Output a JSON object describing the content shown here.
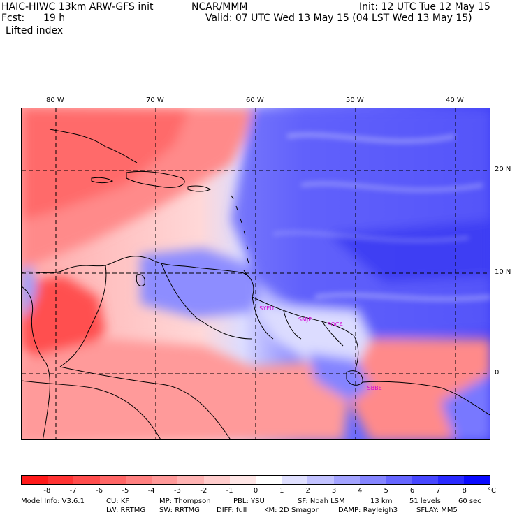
{
  "header": {
    "model_title": "HAIC-HIWC 13km ARW-GFS init",
    "org": "NCAR/MMM",
    "init": "Init: 12 UTC Tue 12 May 15",
    "fcst_label": "Fcst:",
    "fcst_value": "19 h",
    "valid": "Valid: 07 UTC Wed 13 May 15 (04 LST Wed 13 May 15)",
    "field": "Lifted index"
  },
  "map": {
    "lon_labels": [
      "80 W",
      "70 W",
      "60 W",
      "50 W",
      "40 W"
    ],
    "lon_values": [
      -80,
      -70,
      -60,
      -50,
      -40
    ],
    "lat_labels": [
      "20 N",
      "10 N",
      "0"
    ],
    "lat_values": [
      20,
      10,
      0
    ],
    "lon_range": [
      -84,
      -37
    ],
    "lat_range": [
      -6.5,
      26
    ],
    "stations": [
      {
        "label": "SYEU",
        "lon": -59.3,
        "lat": 6.4
      },
      {
        "label": "SMJP",
        "lon": -55.4,
        "lat": 5.3
      },
      {
        "label": "SOCA",
        "lon": -52.5,
        "lat": 4.8
      },
      {
        "label": "SBBE",
        "lon": -48.5,
        "lat": -1.4
      }
    ],
    "colors": {
      "station": "#d400d4",
      "grid": "#000000",
      "coast": "#000000"
    }
  },
  "colorbar": {
    "labels": [
      "-8",
      "-7",
      "-6",
      "-5",
      "-4",
      "-3",
      "-2",
      "-1",
      "0",
      "1",
      "2",
      "3",
      "4",
      "5",
      "6",
      "7",
      "8"
    ],
    "unit": "°C",
    "colors": [
      "#ff1a1a",
      "#ff3333",
      "#ff4d4d",
      "#ff6666",
      "#ff8080",
      "#ff9999",
      "#ffb3b3",
      "#ffcccc",
      "#ffe6e6",
      "#ffffff",
      "#e0e0ff",
      "#c2c2ff",
      "#a3a3ff",
      "#8585ff",
      "#6666ff",
      "#4747ff",
      "#2929ff",
      "#0a0aff"
    ]
  },
  "footer": {
    "line1": {
      "model_info": "Model Info: V3.6.1",
      "cu": "CU: KF",
      "mp": "MP: Thompson",
      "pbl": "PBL: YSU",
      "sf": "SF: Noah LSM",
      "res": "13 km",
      "levels": "51 levels",
      "dt": "60 sec"
    },
    "line2": {
      "lw": "LW: RRTMG",
      "sw": "SW: RRTMG",
      "diff": "DIFF: full",
      "km": "KM: 2D Smagor",
      "damp": "DAMP: Rayleigh3",
      "sflay": "SFLAY: MM5"
    }
  }
}
